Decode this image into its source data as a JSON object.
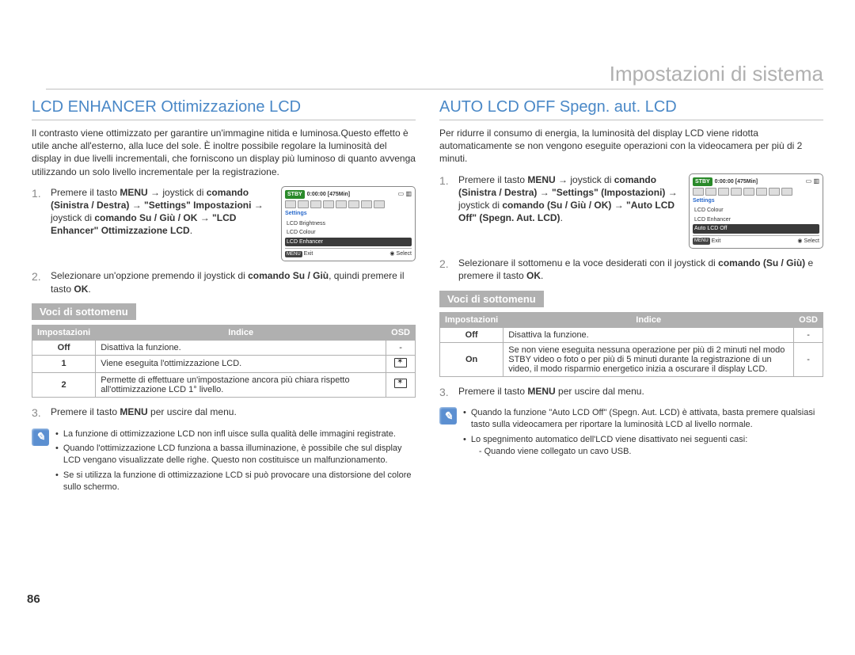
{
  "header": {
    "title": "Impostazioni di sistema"
  },
  "page_number": "86",
  "left": {
    "title": "LCD ENHANCER Ottimizzazione LCD",
    "intro": "Il contrasto viene ottimizzato per garantire un'immagine nitida e luminosa.Questo effetto è utile anche all'esterno, alla luce del sole. È inoltre possibile regolare la luminosità del display in due livelli incrementali, che forniscono un display più luminoso di quanto avvenga utilizzando un solo livello incrementale per la registrazione.",
    "step1_html": "Premere il tasto <b>MENU</b> → joystick di <b>comando (Sinistra / Destra)</b> → <b>\"Settings\" Impostazioni</b> → joystick di <b>comando Su / Giù / OK</b> → <b>\"LCD Enhancer\" Ottimizzazione LCD</b>.",
    "step2_html": "Selezionare un'opzione premendo il joystick di <b>comando Su / Giù</b>, quindi premere il tasto <b>OK</b>.",
    "step3_html": "Premere il tasto <b>MENU</b> per uscire dal menu.",
    "submenu_label": "Voci di sottomenu",
    "table": {
      "h1": "Impostazioni",
      "h2": "Indice",
      "h3": "OSD",
      "r1c1": "Off",
      "r1c2": "Disattiva la funzione.",
      "r1c3": "-",
      "r2c1": "1",
      "r2c2": "Viene eseguita l'ottimizzazione LCD.",
      "r3c1": "2",
      "r3c2": "Permette di effettuare un'impostazione ancora più chiara rispetto all'ottimizzazione LCD 1° livello."
    },
    "notes": {
      "n1": "La funzione di ottimizzazione LCD non infl uisce sulla qualità delle immagini registrate.",
      "n2": "Quando l'ottimizzazione LCD funziona a bassa illuminazione, è possibile che sul display LCD vengano visualizzate delle righe. Questo non costituisce un malfunzionamento.",
      "n3": "Se si utilizza la funzione di ottimizzazione LCD si può provocare una distorsione del colore sullo schermo."
    },
    "screenshot": {
      "badge": "STBY",
      "time": "0:00:00 [475Min]",
      "settings": "Settings",
      "items": [
        "LCD Brightness",
        "LCD Colour",
        "LCD Enhancer"
      ],
      "selected_index": 2,
      "footer_left": "Exit",
      "footer_right": "Select",
      "menu_btn": "MENU"
    }
  },
  "right": {
    "title": "AUTO LCD OFF Spegn. aut. LCD",
    "intro": "Per ridurre il consumo di energia, la luminosità del display LCD viene ridotta automaticamente se non vengono eseguite operazioni con la videocamera per più di 2 minuti.",
    "step1_html": "Premere il tasto <b>MENU</b> → joystick di <b>comando (Sinistra / Destra)</b> → <b>\"Settings\" (Impostazioni)</b> → joystick di <b>comando (Su / Giù / OK)</b> → <b>\"Auto LCD Off\" (Spegn. Aut. LCD)</b>.",
    "step2_html": "Selezionare il sottomenu e la voce desiderati con il joystick di <b>comando (Su / Giù)</b> e premere il tasto <b>OK</b>.",
    "step3_html": "Premere il tasto <b>MENU</b> per uscire dal menu.",
    "submenu_label": "Voci di sottomenu",
    "table": {
      "h1": "Impostazioni",
      "h2": "Indice",
      "h3": "OSD",
      "r1c1": "Off",
      "r1c2": "Disattiva la funzione.",
      "r1c3": "-",
      "r2c1": "On",
      "r2c2": "Se non viene eseguita nessuna operazione per più di 2 minuti nel modo STBY video o foto o per più di 5 minuti durante la registrazione di un video, il modo risparmio energetico inizia a oscurare il display LCD.",
      "r2c3": "-"
    },
    "notes": {
      "n1": "Quando la funzione \"Auto LCD Off\" (Spegn. Aut. LCD) è attivata, basta premere qualsiasi tasto sulla videocamera per riportare la luminosità LCD al livello normale.",
      "n2": "Lo spegnimento automatico dell'LCD viene disattivato nei seguenti casi:",
      "n2_sub": "- Quando viene collegato un cavo USB."
    },
    "screenshot": {
      "badge": "STBY",
      "time": "0:00:00 [475Min]",
      "settings": "Settings",
      "items": [
        "LCD Colour",
        "LCD Enhancer",
        "Auto LCD Off"
      ],
      "selected_index": 2,
      "footer_left": "Exit",
      "footer_right": "Select",
      "menu_btn": "MENU"
    }
  }
}
